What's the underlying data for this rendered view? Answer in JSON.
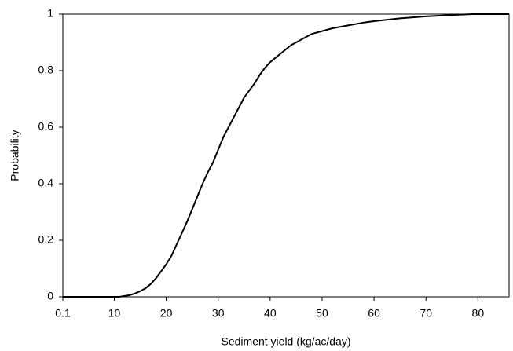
{
  "chart_data": {
    "type": "line",
    "x_label": "Sediment yield (kg/ac/day)",
    "y_label": "Probability",
    "x": [
      0.1,
      10,
      11,
      12,
      13,
      14,
      15,
      16,
      17,
      18,
      19,
      20,
      21,
      22,
      23,
      24,
      25,
      26,
      27,
      28,
      29,
      30,
      31,
      32,
      33,
      34,
      35,
      36,
      37,
      38,
      39,
      40,
      42,
      44,
      46,
      48,
      50,
      52,
      55,
      58,
      60,
      65,
      70,
      75,
      79,
      86
    ],
    "values": [
      0,
      0,
      0,
      0.003,
      0.006,
      0.012,
      0.02,
      0.03,
      0.045,
      0.065,
      0.09,
      0.115,
      0.145,
      0.185,
      0.225,
      0.265,
      0.31,
      0.355,
      0.4,
      0.44,
      0.475,
      0.52,
      0.565,
      0.6,
      0.635,
      0.67,
      0.705,
      0.73,
      0.755,
      0.785,
      0.81,
      0.83,
      0.86,
      0.89,
      0.91,
      0.93,
      0.94,
      0.95,
      0.96,
      0.97,
      0.975,
      0.985,
      0.992,
      0.997,
      1,
      1
    ],
    "color": "#000000",
    "xlim": [
      0.1,
      86
    ],
    "xticks": [
      0.1,
      10,
      20,
      30,
      40,
      50,
      60,
      70,
      80
    ],
    "ylim": [
      0,
      1
    ],
    "yticks": [
      0,
      0.2,
      0.4,
      0.6,
      0.8,
      1
    ],
    "grid": false
  }
}
